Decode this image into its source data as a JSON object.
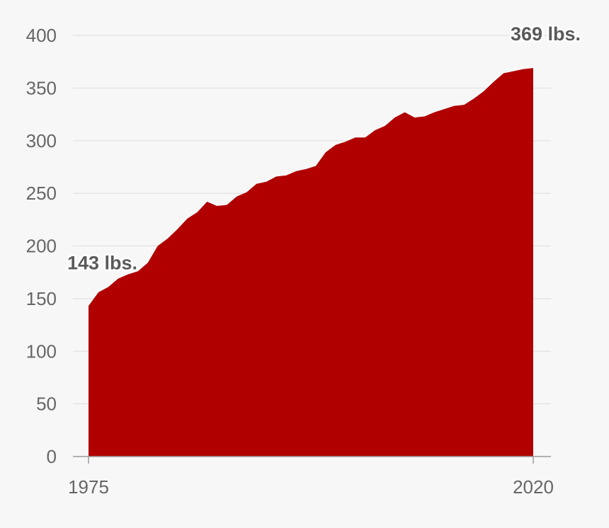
{
  "chart_data": {
    "type": "area",
    "title": "",
    "xlabel": "",
    "ylabel": "",
    "xlim": [
      1975,
      2020
    ],
    "ylim": [
      0,
      400
    ],
    "yticks": [
      0,
      50,
      100,
      150,
      200,
      250,
      300,
      350,
      400
    ],
    "xticks": [
      1975,
      2020
    ],
    "grid": true,
    "series": [
      {
        "color": "#b00000",
        "x": [
          1975,
          1976,
          1977,
          1978,
          1979,
          1980,
          1981,
          1982,
          1983,
          1984,
          1985,
          1986,
          1987,
          1988,
          1989,
          1990,
          1991,
          1992,
          1993,
          1994,
          1995,
          1996,
          1997,
          1998,
          1999,
          2000,
          2001,
          2002,
          2003,
          2004,
          2005,
          2006,
          2007,
          2008,
          2009,
          2010,
          2011,
          2012,
          2013,
          2014,
          2015,
          2016,
          2017,
          2018,
          2019,
          2020
        ],
        "y": [
          143,
          156,
          161,
          169,
          173,
          176,
          184,
          200,
          207,
          216,
          226,
          232,
          242,
          238,
          239,
          247,
          251,
          259,
          261,
          266,
          267,
          271,
          273,
          276,
          289,
          296,
          299,
          303,
          303,
          310,
          314,
          322,
          327,
          322,
          323,
          327,
          330,
          333,
          334,
          340,
          347,
          356,
          364,
          366,
          368,
          369
        ]
      }
    ],
    "annotations": [
      {
        "text": "143 lbs.",
        "x": 1975,
        "y": 143
      },
      {
        "text": "369 lbs.",
        "x": 2020,
        "y": 369
      }
    ]
  }
}
